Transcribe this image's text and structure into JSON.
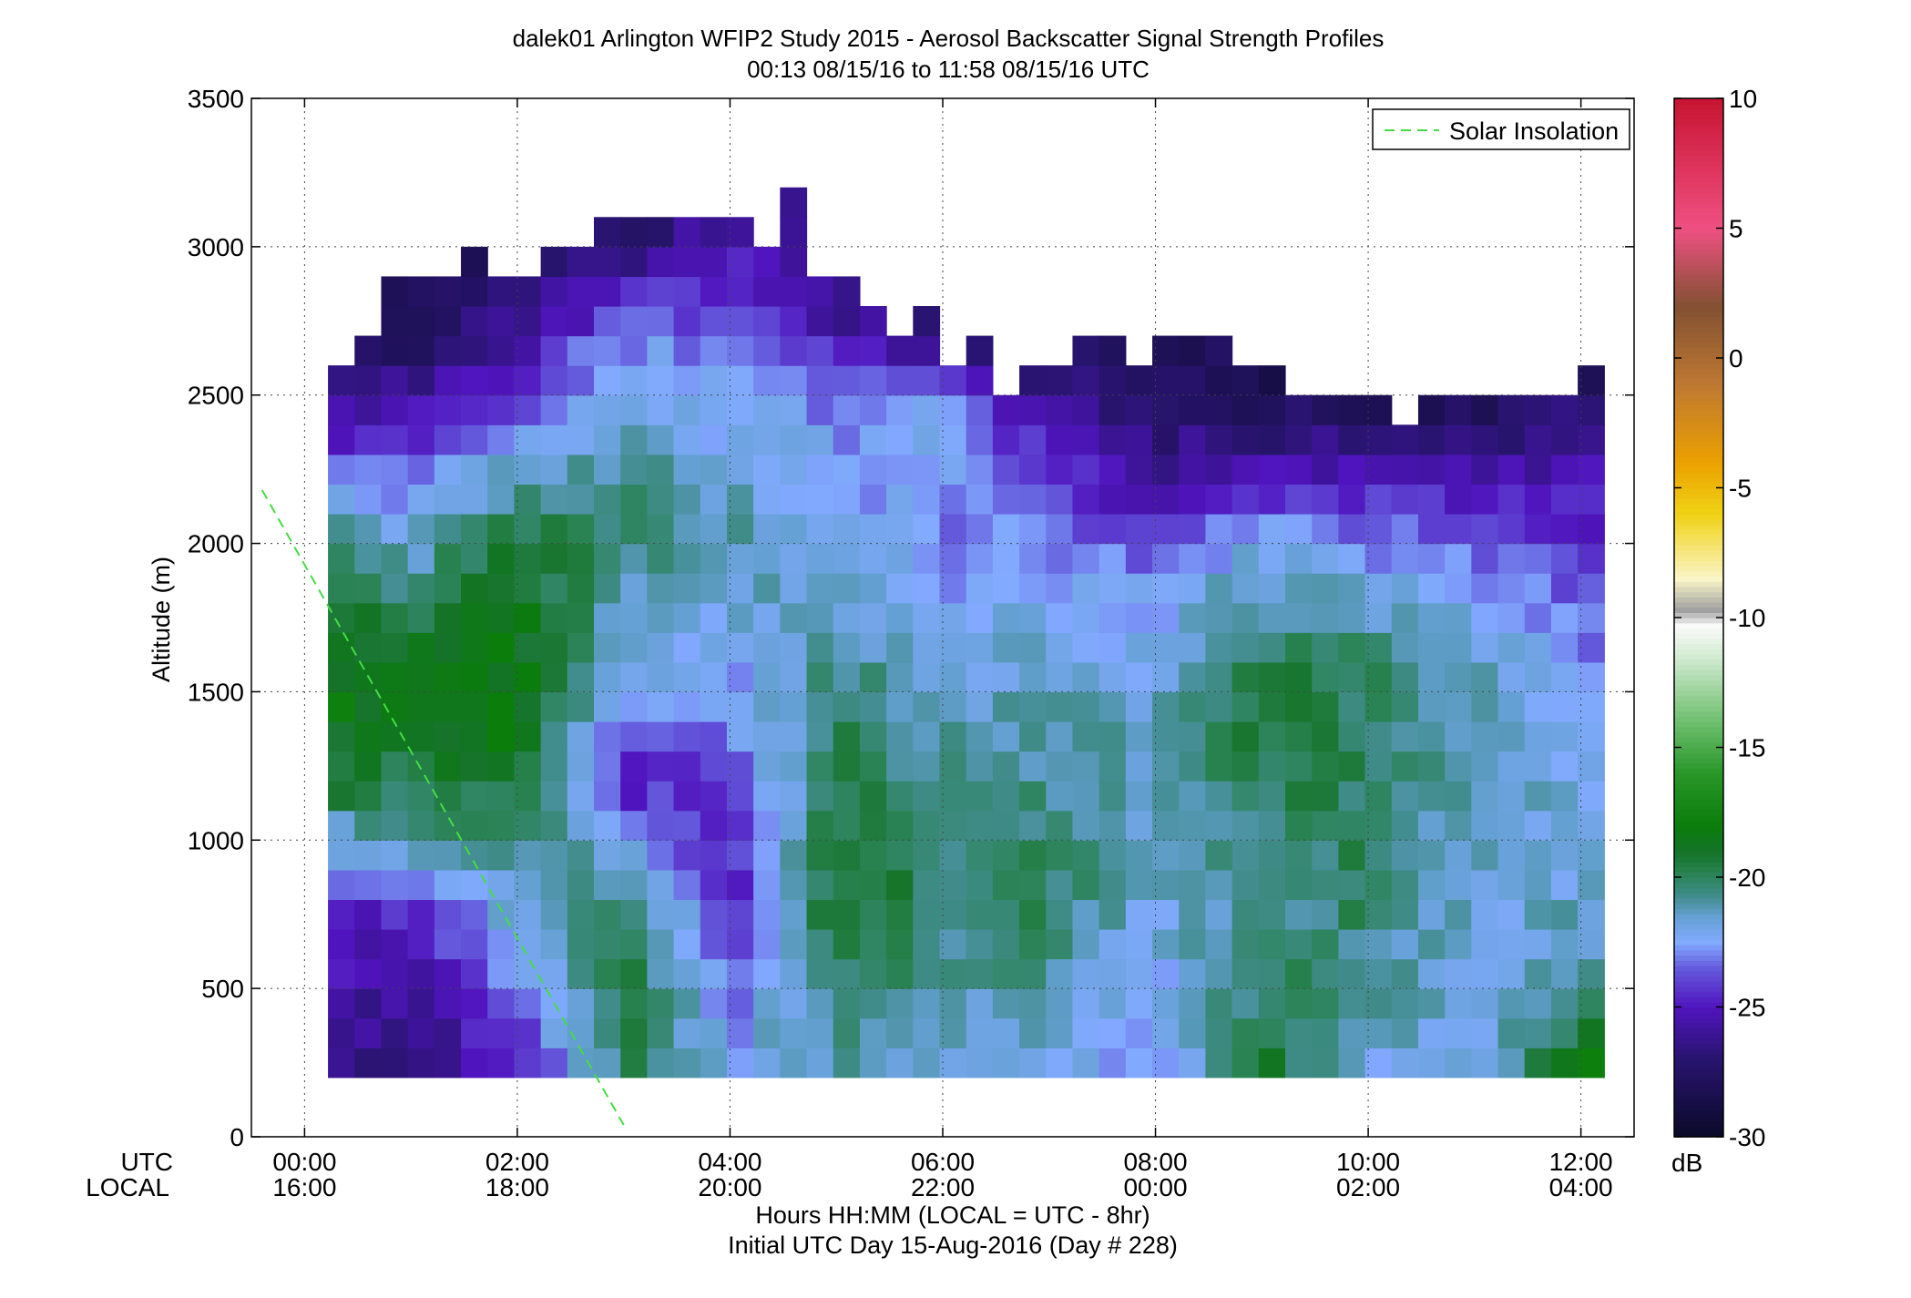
{
  "chart_data": {
    "type": "heatmap",
    "title": "dalek01 Arlington WFIP2 Study 2015 - Aerosol Backscatter Signal Strength Profiles",
    "subtitle": "00:13 08/15/16 to 11:58 08/15/16  UTC",
    "ylabel": "Altitude (m)",
    "xlabel": "Hours HH:MM  (LOCAL = UTC - 8hr)",
    "xlabel2": "Initial UTC Day 15-Aug-2016 (Day # 228)",
    "utc_row_label": "UTC",
    "local_row_label": "LOCAL",
    "x_unit": "hours UTC",
    "xlim": [
      -0.5,
      12.5
    ],
    "ylim": [
      0,
      3500
    ],
    "x_tick_values": [
      0,
      2,
      4,
      6,
      8,
      10,
      12
    ],
    "x_ticks_utc": [
      "00:00",
      "02:00",
      "04:00",
      "06:00",
      "08:00",
      "10:00",
      "12:00"
    ],
    "x_ticks_local": [
      "16:00",
      "18:00",
      "20:00",
      "22:00",
      "00:00",
      "02:00",
      "04:00"
    ],
    "y_tick_values": [
      0,
      500,
      1000,
      1500,
      2000,
      2500,
      3000,
      3500
    ],
    "y_ticks": [
      "0",
      "500",
      "1000",
      "1500",
      "2000",
      "2500",
      "3000",
      "3500"
    ],
    "grid": true,
    "colorbar": {
      "label": "dB",
      "min": -30,
      "max": 10,
      "tick_values": [
        10,
        5,
        0,
        -5,
        -10,
        -15,
        -20,
        -25,
        -30
      ],
      "ticks": [
        "10",
        "5",
        "0",
        "-5",
        "-10",
        "-15",
        "-20",
        "-25",
        "-30"
      ]
    },
    "legend": {
      "position": "top-right",
      "entries": [
        {
          "name": "Solar Insolation",
          "style": "dashed",
          "color": "#44dd44"
        }
      ]
    },
    "solar_insolation": {
      "x": [
        -0.4,
        3.0
      ],
      "y": [
        2180,
        40
      ]
    },
    "grid_spec": {
      "x_start": 0.22,
      "x_step": 0.25,
      "n_cols": 48,
      "y_start": 200,
      "y_step": 100
    },
    "column_tops_m": [
      2600,
      2700,
      2900,
      2900,
      2900,
      3000,
      2900,
      2900,
      3000,
      3000,
      3100,
      3100,
      3100,
      3100,
      3100,
      3100,
      3000,
      3200,
      2900,
      2900,
      2800,
      2700,
      2800,
      2600,
      2700,
      2500,
      2600,
      2600,
      2700,
      2700,
      2600,
      2700,
      2700,
      2700,
      2600,
      2600,
      2500,
      2500,
      2500,
      2500,
      2400,
      2500,
      2500,
      2500,
      2500,
      2500,
      2500,
      2600
    ],
    "dB_profiles": [
      {
        "x": 0,
        "anchors": [
          [
            200,
            -26
          ],
          [
            800,
            -25
          ],
          [
            1200,
            -19
          ],
          [
            1800,
            -18
          ],
          [
            2300,
            -24
          ],
          [
            2600,
            -27
          ]
        ]
      },
      {
        "x": 1,
        "anchors": [
          [
            200,
            -27
          ],
          [
            700,
            -25
          ],
          [
            1000,
            -21
          ],
          [
            1500,
            -18
          ],
          [
            2200,
            -23
          ],
          [
            2700,
            -28
          ]
        ]
      },
      {
        "x": 2,
        "anchors": [
          [
            200,
            -25
          ],
          [
            700,
            -22
          ],
          [
            1400,
            -18
          ],
          [
            2000,
            -19
          ],
          [
            2500,
            -24
          ],
          [
            3000,
            -28
          ]
        ]
      },
      {
        "x": 3,
        "anchors": [
          [
            200,
            -20
          ],
          [
            700,
            -19
          ],
          [
            1200,
            -25
          ],
          [
            1600,
            -22
          ],
          [
            2100,
            -20
          ],
          [
            2600,
            -22
          ],
          [
            3100,
            -28
          ]
        ]
      },
      {
        "x": 4,
        "anchors": [
          [
            200,
            -22
          ],
          [
            900,
            -25
          ],
          [
            1400,
            -23
          ],
          [
            2000,
            -21
          ],
          [
            2600,
            -23
          ],
          [
            3200,
            -26
          ]
        ]
      },
      {
        "x": 5,
        "anchors": [
          [
            200,
            -21
          ],
          [
            800,
            -19
          ],
          [
            1400,
            -20
          ],
          [
            2000,
            -22
          ],
          [
            2500,
            -23
          ],
          [
            2900,
            -27
          ]
        ]
      },
      {
        "x": 6,
        "anchors": [
          [
            200,
            -22
          ],
          [
            800,
            -20
          ],
          [
            1400,
            -21
          ],
          [
            2000,
            -23
          ],
          [
            2400,
            -22
          ],
          [
            2800,
            -28
          ]
        ]
      },
      {
        "x": 7,
        "anchors": [
          [
            200,
            -22
          ],
          [
            800,
            -20
          ],
          [
            1300,
            -21
          ],
          [
            1800,
            -22
          ],
          [
            2200,
            -24
          ],
          [
            2700,
            -28
          ]
        ]
      },
      {
        "x": 8,
        "anchors": [
          [
            200,
            -23
          ],
          [
            700,
            -22
          ],
          [
            1300,
            -21
          ],
          [
            1900,
            -23
          ],
          [
            2200,
            -26
          ],
          [
            2700,
            -28
          ]
        ]
      },
      {
        "x": 9,
        "anchors": [
          [
            200,
            -19
          ],
          [
            800,
            -21
          ],
          [
            1500,
            -19
          ],
          [
            2000,
            -22
          ],
          [
            2200,
            -25
          ],
          [
            2500,
            -28
          ]
        ]
      },
      {
        "x": 10,
        "anchors": [
          [
            200,
            -22
          ],
          [
            800,
            -20
          ],
          [
            1500,
            -20
          ],
          [
            1900,
            -22
          ],
          [
            2200,
            -25
          ],
          [
            2500,
            -28
          ]
        ]
      },
      {
        "x": 11,
        "anchors": [
          [
            200,
            -22
          ],
          [
            700,
            -22
          ],
          [
            1400,
            -21
          ],
          [
            1800,
            -22
          ],
          [
            2200,
            -25
          ],
          [
            2500,
            -28
          ]
        ]
      },
      {
        "x": 12,
        "anchors": [
          [
            200,
            -18
          ],
          [
            500,
            -21
          ],
          [
            1100,
            -22
          ],
          [
            1700,
            -23
          ],
          [
            2200,
            -25
          ],
          [
            2600,
            -28
          ]
        ]
      }
    ]
  }
}
